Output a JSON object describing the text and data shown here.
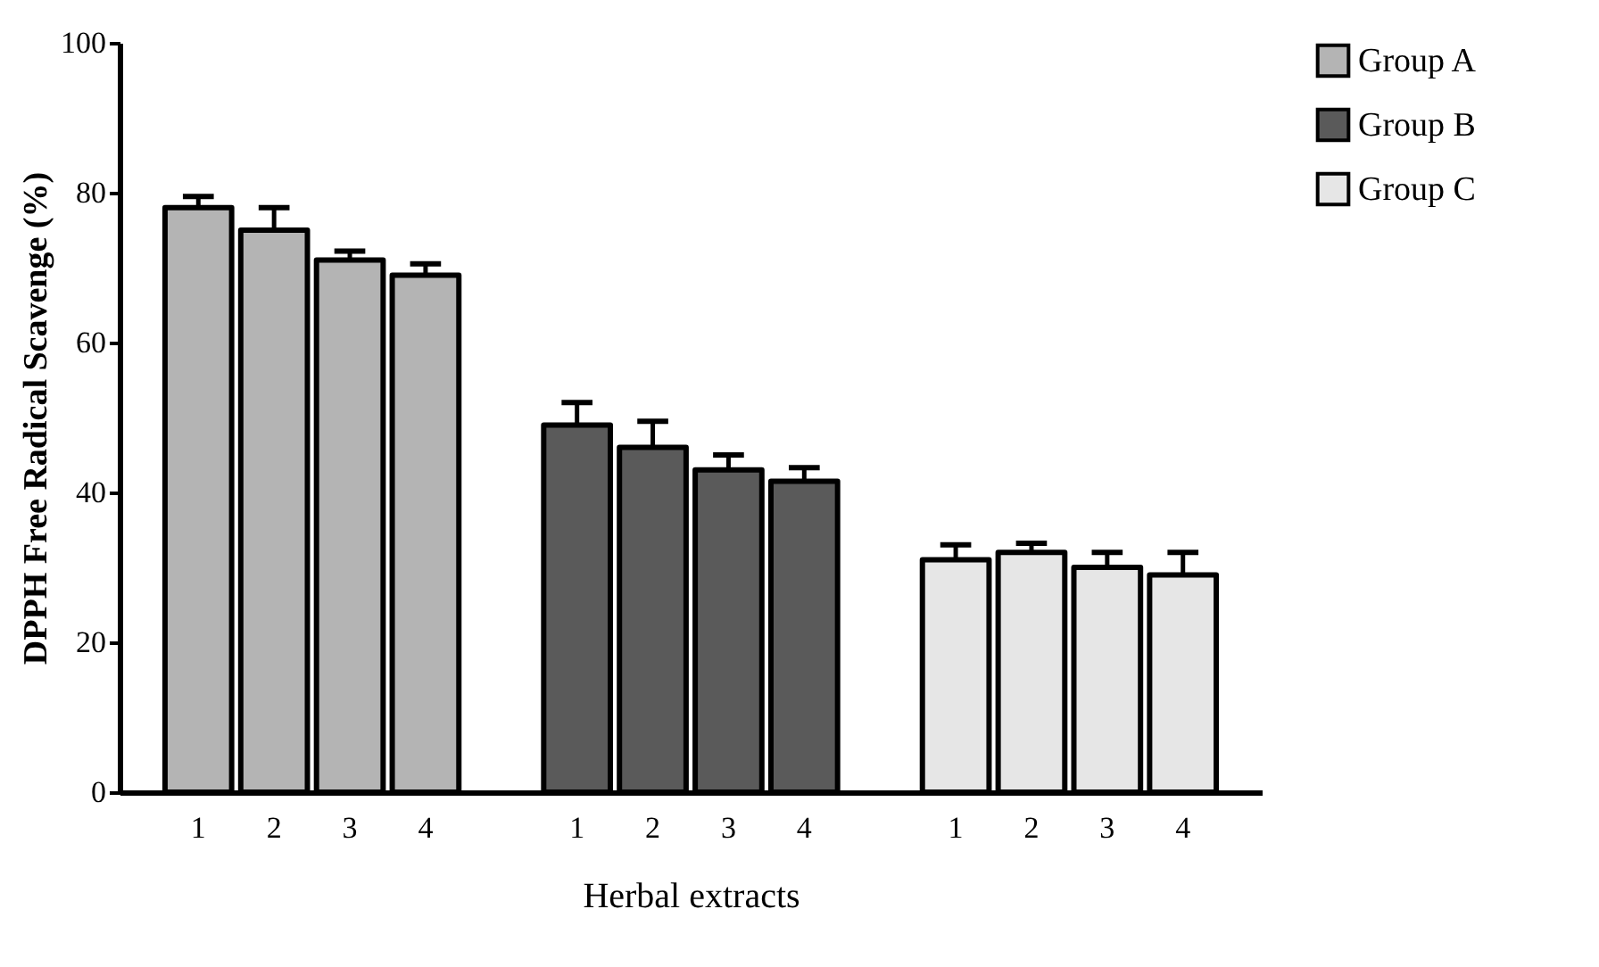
{
  "chart_data": {
    "type": "bar",
    "xlabel": "Herbal extracts",
    "ylabel": "DPPH Free Radical Scavenge (%)",
    "categories": [
      "1",
      "2",
      "3",
      "4",
      "1",
      "2",
      "3",
      "4",
      "1",
      "2",
      "3",
      "4"
    ],
    "series": [
      {
        "name": "Group A",
        "color": "#b4b4b4",
        "values": [
          78,
          75,
          71,
          69,
          null,
          null,
          null,
          null,
          null,
          null,
          null,
          null
        ],
        "errors": [
          [
            78,
            79.5
          ],
          [
            75,
            78
          ],
          [
            71,
            72.2
          ],
          [
            69,
            70.5
          ],
          null,
          null,
          null,
          null,
          null,
          null,
          null,
          null
        ]
      },
      {
        "name": "Group B",
        "color": "#5a5a5a",
        "values": [
          null,
          null,
          null,
          null,
          49,
          46,
          43,
          41.5,
          null,
          null,
          null,
          null
        ],
        "errors": [
          null,
          null,
          null,
          null,
          [
            49,
            52
          ],
          [
            46,
            49.5
          ],
          [
            43,
            45
          ],
          [
            41.5,
            43.3
          ],
          null,
          null,
          null,
          null
        ]
      },
      {
        "name": "Group C",
        "color": "#e6e6e6",
        "values": [
          null,
          null,
          null,
          null,
          null,
          null,
          null,
          null,
          31,
          32,
          30,
          29
        ],
        "errors": [
          null,
          null,
          null,
          null,
          null,
          null,
          null,
          null,
          [
            31,
            33
          ],
          [
            32,
            33.2
          ],
          [
            30,
            32
          ],
          [
            29,
            32
          ]
        ]
      }
    ],
    "ylim": [
      0,
      100
    ],
    "yticks": [
      0,
      20,
      40,
      60,
      80,
      100
    ],
    "grid": false,
    "legend": "top right"
  }
}
